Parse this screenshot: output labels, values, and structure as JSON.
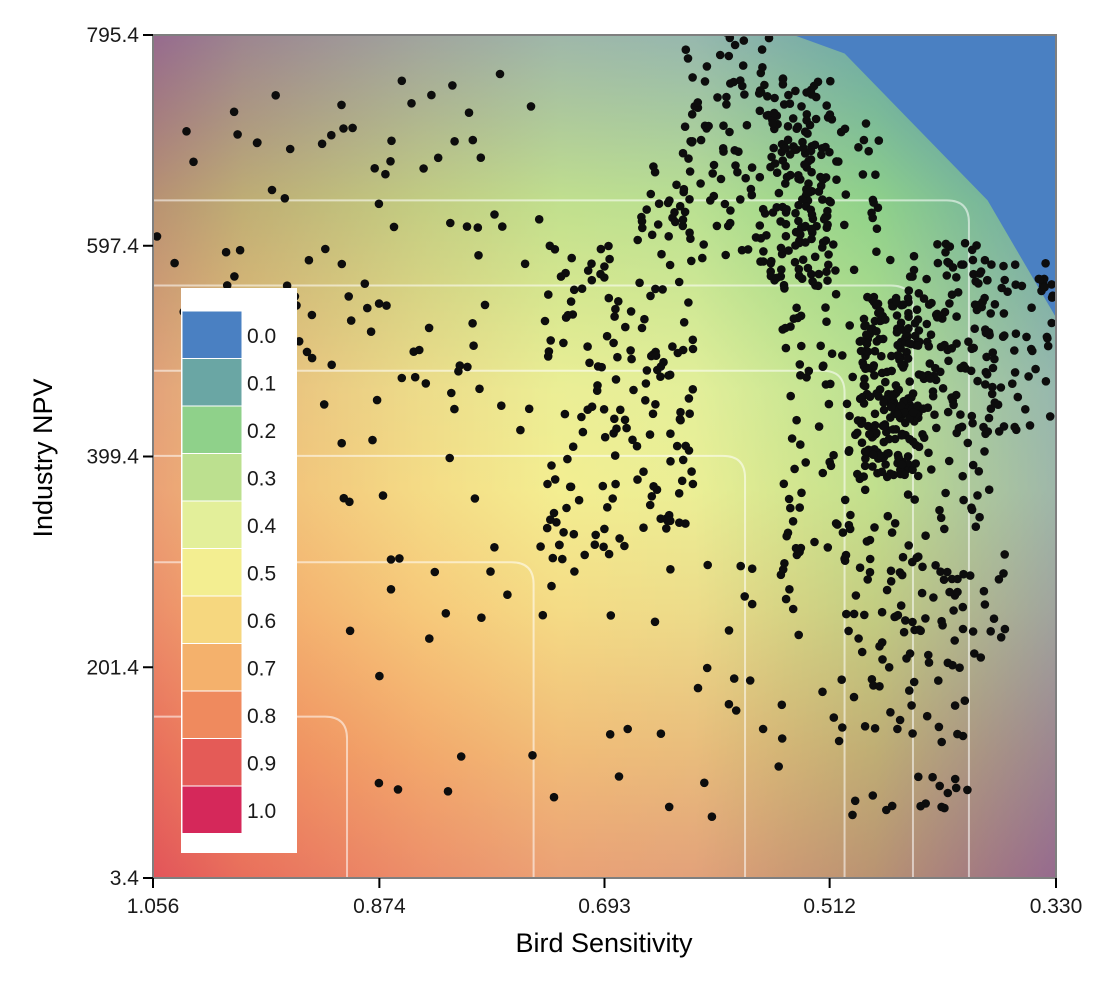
{
  "chart_data": {
    "type": "heatmap",
    "title": "",
    "xlabel": "Bird Sensitivity",
    "ylabel": "Industry NPV",
    "x_reversed": true,
    "xlim": [
      1.056,
      0.33
    ],
    "ylim": [
      3.4,
      795.4
    ],
    "x_ticks": [
      "1.056",
      "0.874",
      "0.693",
      "0.512",
      "0.330"
    ],
    "x_tick_values": [
      1.056,
      0.874,
      0.693,
      0.512,
      0.33
    ],
    "y_ticks": [
      "3.4",
      "201.4",
      "399.4",
      "597.4",
      "795.4"
    ],
    "y_tick_values": [
      3.4,
      201.4,
      399.4,
      597.4,
      795.4
    ],
    "grid": true,
    "legend_position": "inside-left",
    "legend": {
      "labels": [
        "0.0",
        "0.1",
        "0.2",
        "0.3",
        "0.4",
        "0.5",
        "0.6",
        "0.7",
        "0.8",
        "0.9",
        "1.0"
      ],
      "colors": [
        "#4a80c2",
        "#6aa6a4",
        "#8fd18a",
        "#bce08f",
        "#e3ef9a",
        "#f3ee91",
        "#f6d77f",
        "#f4b16c",
        "#ef8a5e",
        "#e45b57",
        "#d5285a"
      ]
    },
    "feasible_boundary": [
      {
        "x": 1.056,
        "y": 795.4
      },
      {
        "x": 0.541,
        "y": 795.4
      },
      {
        "x": 0.5,
        "y": 778
      },
      {
        "x": 0.385,
        "y": 640
      },
      {
        "x": 0.33,
        "y": 530
      },
      {
        "x": 0.33,
        "y": 3.4
      }
    ],
    "scatter_clusters": [
      {
        "x_range": [
          1.056,
          0.9
        ],
        "y_range": [
          440,
          740
        ],
        "count": 40
      },
      {
        "x_range": [
          0.92,
          0.74
        ],
        "y_range": [
          300,
          760
        ],
        "count": 70
      },
      {
        "x_range": [
          0.74,
          0.67
        ],
        "y_range": [
          290,
          600
        ],
        "count": 90
      },
      {
        "x_range": [
          0.67,
          0.62
        ],
        "y_range": [
          330,
          680
        ],
        "count": 90
      },
      {
        "x_range": [
          0.63,
          0.56
        ],
        "y_range": [
          580,
          800
        ],
        "count": 90
      },
      {
        "x_range": [
          0.56,
          0.51
        ],
        "y_range": [
          560,
          760
        ],
        "count": 130
      },
      {
        "x_range": [
          0.55,
          0.47
        ],
        "y_range": [
          300,
          720
        ],
        "count": 140
      },
      {
        "x_range": [
          0.49,
          0.44
        ],
        "y_range": [
          380,
          550
        ],
        "count": 170
      },
      {
        "x_range": [
          0.45,
          0.33
        ],
        "y_range": [
          420,
          590
        ],
        "count": 120
      },
      {
        "x_range": [
          0.47,
          0.37
        ],
        "y_range": [
          200,
          600
        ],
        "count": 150
      },
      {
        "x_range": [
          0.5,
          0.4
        ],
        "y_range": [
          60,
          300
        ],
        "count": 70
      },
      {
        "x_range": [
          0.9,
          0.6
        ],
        "y_range": [
          60,
          300
        ],
        "count": 30
      },
      {
        "x_range": [
          0.6,
          0.5
        ],
        "y_range": [
          80,
          300
        ],
        "count": 25
      }
    ]
  }
}
